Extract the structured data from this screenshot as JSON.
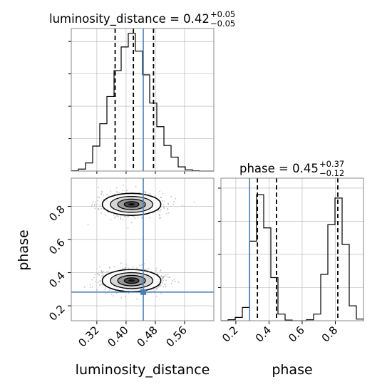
{
  "chart_data": {
    "type": "corner",
    "title": "",
    "params": [
      {
        "name": "luminosity_distance",
        "median": 0.42,
        "plus": "+0.05",
        "minus": "−0.05",
        "truth": 0.447
      },
      {
        "name": "phase",
        "median": 0.45,
        "plus": "+0.37",
        "minus": "−0.12",
        "truth": 0.283
      }
    ],
    "titles": {
      "luminosity_distance": {
        "prefix": "luminosity_distance = 0.42",
        "plus": "+0.05",
        "minus": "−0.05"
      },
      "phase": {
        "prefix": "phase = 0.45",
        "plus": "+0.37",
        "minus": "−0.12"
      }
    },
    "axes": {
      "luminosity_distance": {
        "label": "luminosity_distance",
        "range": [
          0.25,
          0.64
        ],
        "ticks": [
          0.32,
          0.4,
          0.48,
          0.56
        ],
        "tick_labels": [
          "0.32",
          "0.40",
          "0.48",
          "0.56"
        ]
      },
      "phase": {
        "label": "phase",
        "range": [
          0.11,
          0.97
        ],
        "ticks": [
          0.2,
          0.4,
          0.6,
          0.8
        ],
        "tick_labels": [
          "0.2",
          "0.4",
          "0.6",
          "0.8"
        ]
      }
    },
    "quantiles": {
      "luminosity_distance": [
        0.37,
        0.42,
        0.475
      ],
      "phase": [
        0.33,
        0.445,
        0.815
      ]
    },
    "hist_luminosity_distance": {
      "bin_edges": [
        0.25,
        0.2695,
        0.289,
        0.3085,
        0.328,
        0.3475,
        0.367,
        0.3865,
        0.406,
        0.4255,
        0.445,
        0.4645,
        0.484,
        0.5035,
        0.523,
        0.5425,
        0.562,
        0.5815,
        0.601,
        0.6205,
        0.64
      ],
      "counts": [
        0.1,
        0.6,
        2.5,
        7.7,
        14.6,
        23.0,
        31.0,
        38.3,
        42.5,
        37.0,
        29.7,
        21.0,
        13.7,
        7.9,
        4.3,
        1.3,
        0.4,
        0.1,
        0.0,
        0.0
      ],
      "ylim": [
        0,
        44
      ]
    },
    "hist_phase": {
      "bin_edges": [
        0.11,
        0.153,
        0.196,
        0.239,
        0.282,
        0.325,
        0.368,
        0.411,
        0.454,
        0.497,
        0.54,
        0.583,
        0.626,
        0.669,
        0.712,
        0.755,
        0.798,
        0.841,
        0.884,
        0.927,
        0.97
      ],
      "counts": [
        0.0,
        0.3,
        1.0,
        4.0,
        24.0,
        38.0,
        28.0,
        13.0,
        2.0,
        0.2,
        0.0,
        0.0,
        0.3,
        2.0,
        14.0,
        29.0,
        37.0,
        23.0,
        4.5,
        0.5
      ],
      "ylim": [
        0,
        43
      ]
    },
    "modes_2d": [
      {
        "x": 0.415,
        "y": 0.812,
        "sx": 0.04,
        "sy": 0.035
      },
      {
        "x": 0.415,
        "y": 0.352,
        "sx": 0.04,
        "sy": 0.035
      }
    ],
    "grid": true,
    "colors": {
      "truth": "#4a7fb5",
      "hist": "#000000",
      "grid": "#b0b0b0",
      "points": "#555555"
    }
  }
}
